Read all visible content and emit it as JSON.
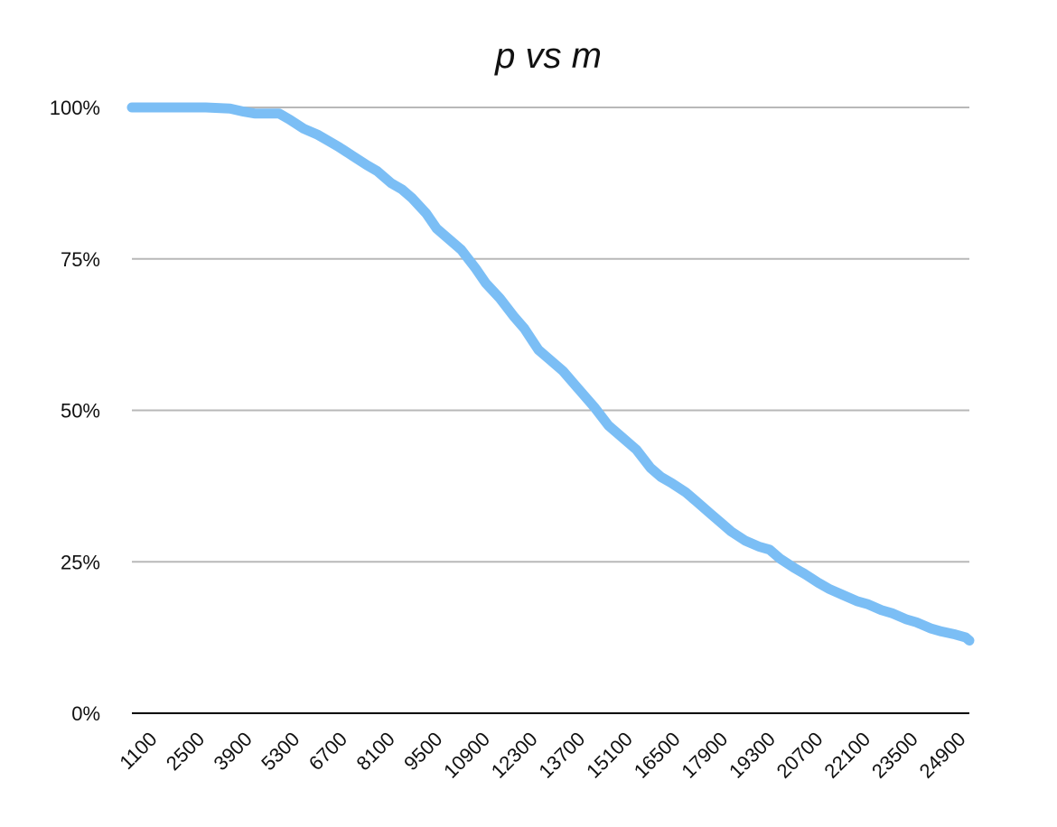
{
  "chart_data": {
    "type": "line",
    "title": "p vs m",
    "xlabel": "",
    "ylabel": "",
    "ylim": [
      0,
      1
    ],
    "y_ticks": [
      "0%",
      "25%",
      "50%",
      "75%",
      "100%"
    ],
    "y_tick_values": [
      0,
      0.25,
      0.5,
      0.75,
      1.0
    ],
    "x_tick_labels": [
      "1100",
      "2500",
      "3900",
      "5300",
      "6700",
      "8100",
      "9500",
      "10900",
      "12300",
      "13700",
      "15100",
      "16500",
      "17900",
      "19300",
      "20700",
      "22100",
      "23500",
      "24900"
    ],
    "xlim": [
      1100,
      25000
    ],
    "grid": true,
    "legend": "none",
    "colors": {
      "series": "#7bbef5",
      "grid": "#b8b8b8",
      "axis": "#000000"
    },
    "series": [
      {
        "x": [
          1100,
          1800,
          2500,
          3200,
          3900,
          4300,
          4600,
          5000,
          5300,
          5600,
          6000,
          6400,
          6700,
          7000,
          7400,
          7800,
          8100,
          8500,
          8800,
          9100,
          9500,
          9800,
          10100,
          10500,
          10900,
          11200,
          11600,
          12000,
          12300,
          12700,
          13000,
          13400,
          13700,
          14000,
          14300,
          14700,
          15100,
          15500,
          15900,
          16200,
          16500,
          16900,
          17200,
          17600,
          17900,
          18200,
          18600,
          19000,
          19300,
          19600,
          20000,
          20300,
          20700,
          21000,
          21400,
          21800,
          22100,
          22500,
          22800,
          23200,
          23500,
          23900,
          24200,
          24600,
          24900,
          25000
        ],
        "y": [
          1.0,
          1.0,
          1.0,
          1.0,
          0.998,
          0.993,
          0.99,
          0.99,
          0.99,
          0.98,
          0.965,
          0.955,
          0.945,
          0.935,
          0.92,
          0.905,
          0.895,
          0.875,
          0.865,
          0.85,
          0.825,
          0.8,
          0.785,
          0.765,
          0.735,
          0.71,
          0.685,
          0.655,
          0.635,
          0.6,
          0.585,
          0.565,
          0.545,
          0.525,
          0.505,
          0.475,
          0.455,
          0.435,
          0.405,
          0.39,
          0.38,
          0.365,
          0.35,
          0.33,
          0.315,
          0.3,
          0.285,
          0.275,
          0.27,
          0.255,
          0.24,
          0.23,
          0.215,
          0.205,
          0.195,
          0.185,
          0.18,
          0.17,
          0.165,
          0.155,
          0.15,
          0.14,
          0.135,
          0.13,
          0.125,
          0.12
        ]
      }
    ]
  }
}
